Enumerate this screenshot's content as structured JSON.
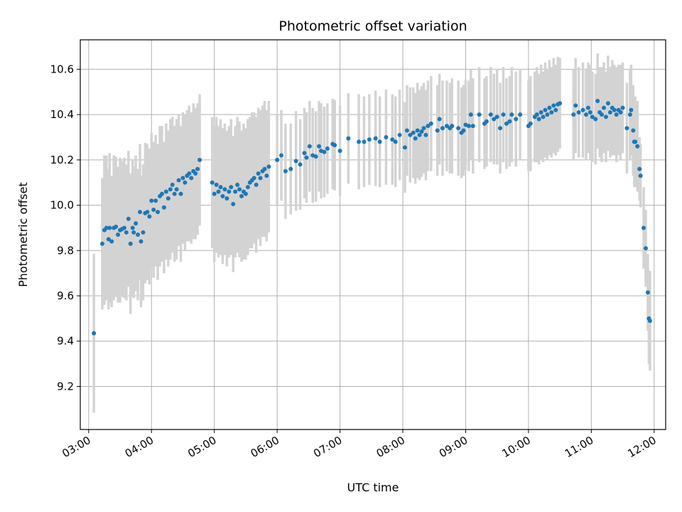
{
  "chart_data": {
    "type": "scatter",
    "title": "Photometric offset variation",
    "xlabel": "UTC time",
    "ylabel": "Photometric offset",
    "x_tick_labels": [
      "03:00",
      "04:00",
      "05:00",
      "06:00",
      "07:00",
      "08:00",
      "09:00",
      "10:00",
      "11:00",
      "12:00"
    ],
    "y_tick_labels": [
      "9.2",
      "9.4",
      "9.6",
      "9.8",
      "10.0",
      "10.2",
      "10.4",
      "10.6"
    ],
    "xlim": [
      "02:52",
      "12:11"
    ],
    "ylim": [
      9.01,
      10.73
    ],
    "grid": true,
    "colors": {
      "point": "#1f77b4",
      "errorbar": "#d3d3d3",
      "grid": "#b0b0b0"
    },
    "points": [
      {
        "t": "03:05",
        "y": 9.435,
        "e": 0.35
      },
      {
        "t": "03:13",
        "y": 9.83,
        "e": 0.29
      },
      {
        "t": "03:15",
        "y": 9.89,
        "e": 0.33
      },
      {
        "t": "03:17",
        "y": 9.9,
        "e": 0.32
      },
      {
        "t": "03:19",
        "y": 9.85,
        "e": 0.31
      },
      {
        "t": "03:20",
        "y": 9.9,
        "e": 0.33
      },
      {
        "t": "03:22",
        "y": 9.84,
        "e": 0.29
      },
      {
        "t": "03:24",
        "y": 9.9,
        "e": 0.32
      },
      {
        "t": "03:26",
        "y": 9.905,
        "e": 0.31
      },
      {
        "t": "03:28",
        "y": 9.87,
        "e": 0.3
      },
      {
        "t": "03:30",
        "y": 9.89,
        "e": 0.32
      },
      {
        "t": "03:32",
        "y": 9.895,
        "e": 0.3
      },
      {
        "t": "03:34",
        "y": 9.9,
        "e": 0.31
      },
      {
        "t": "03:36",
        "y": 9.88,
        "e": 0.3
      },
      {
        "t": "03:38",
        "y": 9.94,
        "e": 0.3
      },
      {
        "t": "03:40",
        "y": 9.83,
        "e": 0.31
      },
      {
        "t": "03:42",
        "y": 9.9,
        "e": 0.3
      },
      {
        "t": "03:43",
        "y": 9.88,
        "e": 0.29
      },
      {
        "t": "03:45",
        "y": 9.92,
        "e": 0.3
      },
      {
        "t": "03:47",
        "y": 9.87,
        "e": 0.29
      },
      {
        "t": "03:49",
        "y": 9.97,
        "e": 0.3
      },
      {
        "t": "03:50",
        "y": 9.84,
        "e": 0.29
      },
      {
        "t": "03:52",
        "y": 9.88,
        "e": 0.3
      },
      {
        "t": "03:54",
        "y": 9.965,
        "e": 0.31
      },
      {
        "t": "03:56",
        "y": 9.97,
        "e": 0.3
      },
      {
        "t": "03:58",
        "y": 9.95,
        "e": 0.3
      },
      {
        "t": "04:00",
        "y": 10.02,
        "e": 0.3
      },
      {
        "t": "04:02",
        "y": 9.98,
        "e": 0.3
      },
      {
        "t": "04:04",
        "y": 10.02,
        "e": 0.29
      },
      {
        "t": "04:06",
        "y": 9.97,
        "e": 0.3
      },
      {
        "t": "04:08",
        "y": 10.04,
        "e": 0.31
      },
      {
        "t": "04:10",
        "y": 10.05,
        "e": 0.3
      },
      {
        "t": "04:12",
        "y": 9.99,
        "e": 0.29
      },
      {
        "t": "04:14",
        "y": 10.06,
        "e": 0.3
      },
      {
        "t": "04:16",
        "y": 10.03,
        "e": 0.3
      },
      {
        "t": "04:18",
        "y": 10.07,
        "e": 0.31
      },
      {
        "t": "04:20",
        "y": 10.09,
        "e": 0.3
      },
      {
        "t": "04:22",
        "y": 10.05,
        "e": 0.3
      },
      {
        "t": "04:24",
        "y": 10.07,
        "e": 0.31
      },
      {
        "t": "04:26",
        "y": 10.11,
        "e": 0.29
      },
      {
        "t": "04:28",
        "y": 10.05,
        "e": 0.3
      },
      {
        "t": "04:30",
        "y": 10.12,
        "e": 0.29
      },
      {
        "t": "04:32",
        "y": 10.1,
        "e": 0.3
      },
      {
        "t": "04:34",
        "y": 10.13,
        "e": 0.29
      },
      {
        "t": "04:36",
        "y": 10.14,
        "e": 0.3
      },
      {
        "t": "04:38",
        "y": 10.12,
        "e": 0.29
      },
      {
        "t": "04:40",
        "y": 10.15,
        "e": 0.3
      },
      {
        "t": "04:42",
        "y": 10.14,
        "e": 0.29
      },
      {
        "t": "04:44",
        "y": 10.16,
        "e": 0.29
      },
      {
        "t": "04:46",
        "y": 10.2,
        "e": 0.29
      },
      {
        "t": "04:58",
        "y": 10.1,
        "e": 0.29
      },
      {
        "t": "05:00",
        "y": 10.05,
        "e": 0.3
      },
      {
        "t": "05:02",
        "y": 10.09,
        "e": 0.3
      },
      {
        "t": "05:04",
        "y": 10.06,
        "e": 0.29
      },
      {
        "t": "05:06",
        "y": 10.08,
        "e": 0.3
      },
      {
        "t": "05:08",
        "y": 10.04,
        "e": 0.3
      },
      {
        "t": "05:10",
        "y": 10.07,
        "e": 0.29
      },
      {
        "t": "05:12",
        "y": 10.03,
        "e": 0.3
      },
      {
        "t": "05:14",
        "y": 10.06,
        "e": 0.29
      },
      {
        "t": "05:16",
        "y": 10.08,
        "e": 0.3
      },
      {
        "t": "05:18",
        "y": 10.005,
        "e": 0.3
      },
      {
        "t": "05:20",
        "y": 10.06,
        "e": 0.29
      },
      {
        "t": "05:22",
        "y": 10.09,
        "e": 0.3
      },
      {
        "t": "05:24",
        "y": 10.07,
        "e": 0.3
      },
      {
        "t": "05:26",
        "y": 10.04,
        "e": 0.29
      },
      {
        "t": "05:28",
        "y": 10.06,
        "e": 0.3
      },
      {
        "t": "05:30",
        "y": 10.05,
        "e": 0.29
      },
      {
        "t": "05:32",
        "y": 10.08,
        "e": 0.3
      },
      {
        "t": "05:34",
        "y": 10.1,
        "e": 0.29
      },
      {
        "t": "05:36",
        "y": 10.11,
        "e": 0.3
      },
      {
        "t": "05:38",
        "y": 10.12,
        "e": 0.29
      },
      {
        "t": "05:40",
        "y": 10.09,
        "e": 0.3
      },
      {
        "t": "05:42",
        "y": 10.14,
        "e": 0.29
      },
      {
        "t": "05:44",
        "y": 10.12,
        "e": 0.3
      },
      {
        "t": "05:46",
        "y": 10.15,
        "e": 0.29
      },
      {
        "t": "05:48",
        "y": 10.16,
        "e": 0.3
      },
      {
        "t": "05:50",
        "y": 10.13,
        "e": 0.29
      },
      {
        "t": "05:52",
        "y": 10.17,
        "e": 0.29
      },
      {
        "t": "06:00",
        "y": 10.2,
        "e": 0.2
      },
      {
        "t": "06:04",
        "y": 10.22,
        "e": 0.2
      },
      {
        "t": "06:08",
        "y": 10.15,
        "e": 0.21
      },
      {
        "t": "06:13",
        "y": 10.16,
        "e": 0.2
      },
      {
        "t": "06:18",
        "y": 10.195,
        "e": 0.22
      },
      {
        "t": "06:22",
        "y": 10.18,
        "e": 0.2
      },
      {
        "t": "06:26",
        "y": 10.23,
        "e": 0.2
      },
      {
        "t": "06:28",
        "y": 10.21,
        "e": 0.2
      },
      {
        "t": "06:31",
        "y": 10.26,
        "e": 0.2
      },
      {
        "t": "06:34",
        "y": 10.22,
        "e": 0.21
      },
      {
        "t": "06:37",
        "y": 10.215,
        "e": 0.2
      },
      {
        "t": "06:40",
        "y": 10.26,
        "e": 0.2
      },
      {
        "t": "06:42",
        "y": 10.24,
        "e": 0.21
      },
      {
        "t": "06:45",
        "y": 10.235,
        "e": 0.2
      },
      {
        "t": "06:48",
        "y": 10.25,
        "e": 0.2
      },
      {
        "t": "06:53",
        "y": 10.27,
        "e": 0.2
      },
      {
        "t": "06:55",
        "y": 10.265,
        "e": 0.2
      },
      {
        "t": "07:00",
        "y": 10.24,
        "e": 0.2
      },
      {
        "t": "07:08",
        "y": 10.295,
        "e": 0.2
      },
      {
        "t": "07:18",
        "y": 10.28,
        "e": 0.21
      },
      {
        "t": "07:23",
        "y": 10.28,
        "e": 0.2
      },
      {
        "t": "07:28",
        "y": 10.29,
        "e": 0.2
      },
      {
        "t": "07:34",
        "y": 10.295,
        "e": 0.21
      },
      {
        "t": "07:38",
        "y": 10.28,
        "e": 0.2
      },
      {
        "t": "07:44",
        "y": 10.3,
        "e": 0.21
      },
      {
        "t": "07:50",
        "y": 10.29,
        "e": 0.2
      },
      {
        "t": "07:53",
        "y": 10.28,
        "e": 0.2
      },
      {
        "t": "07:57",
        "y": 10.31,
        "e": 0.2
      },
      {
        "t": "08:02",
        "y": 10.255,
        "e": 0.2
      },
      {
        "t": "08:04",
        "y": 10.33,
        "e": 0.2
      },
      {
        "t": "08:07",
        "y": 10.31,
        "e": 0.21
      },
      {
        "t": "08:10",
        "y": 10.32,
        "e": 0.2
      },
      {
        "t": "08:12",
        "y": 10.295,
        "e": 0.2
      },
      {
        "t": "08:14",
        "y": 10.33,
        "e": 0.21
      },
      {
        "t": "08:16",
        "y": 10.31,
        "e": 0.2
      },
      {
        "t": "08:18",
        "y": 10.325,
        "e": 0.2
      },
      {
        "t": "08:20",
        "y": 10.34,
        "e": 0.2
      },
      {
        "t": "08:22",
        "y": 10.31,
        "e": 0.2
      },
      {
        "t": "08:24",
        "y": 10.35,
        "e": 0.2
      },
      {
        "t": "08:27",
        "y": 10.36,
        "e": 0.21
      },
      {
        "t": "08:33",
        "y": 10.33,
        "e": 0.2
      },
      {
        "t": "08:35",
        "y": 10.38,
        "e": 0.2
      },
      {
        "t": "08:38",
        "y": 10.34,
        "e": 0.21
      },
      {
        "t": "08:42",
        "y": 10.35,
        "e": 0.2
      },
      {
        "t": "08:45",
        "y": 10.34,
        "e": 0.2
      },
      {
        "t": "08:47",
        "y": 10.35,
        "e": 0.21
      },
      {
        "t": "08:53",
        "y": 10.34,
        "e": 0.21
      },
      {
        "t": "08:56",
        "y": 10.32,
        "e": 0.2
      },
      {
        "t": "08:58",
        "y": 10.33,
        "e": 0.2
      },
      {
        "t": "09:00",
        "y": 10.355,
        "e": 0.2
      },
      {
        "t": "09:03",
        "y": 10.35,
        "e": 0.2
      },
      {
        "t": "09:05",
        "y": 10.4,
        "e": 0.2
      },
      {
        "t": "09:07",
        "y": 10.35,
        "e": 0.21
      },
      {
        "t": "09:13",
        "y": 10.4,
        "e": 0.21
      },
      {
        "t": "09:18",
        "y": 10.36,
        "e": 0.2
      },
      {
        "t": "09:20",
        "y": 10.37,
        "e": 0.2
      },
      {
        "t": "09:24",
        "y": 10.4,
        "e": 0.21
      },
      {
        "t": "09:27",
        "y": 10.38,
        "e": 0.2
      },
      {
        "t": "09:30",
        "y": 10.39,
        "e": 0.21
      },
      {
        "t": "09:33",
        "y": 10.34,
        "e": 0.2
      },
      {
        "t": "09:36",
        "y": 10.4,
        "e": 0.21
      },
      {
        "t": "09:39",
        "y": 10.36,
        "e": 0.2
      },
      {
        "t": "09:42",
        "y": 10.37,
        "e": 0.2
      },
      {
        "t": "09:44",
        "y": 10.4,
        "e": 0.21
      },
      {
        "t": "09:48",
        "y": 10.38,
        "e": 0.21
      },
      {
        "t": "09:52",
        "y": 10.4,
        "e": 0.2
      },
      {
        "t": "10:00",
        "y": 10.35,
        "e": 0.2
      },
      {
        "t": "10:02",
        "y": 10.36,
        "e": 0.21
      },
      {
        "t": "10:06",
        "y": 10.39,
        "e": 0.2
      },
      {
        "t": "10:08",
        "y": 10.4,
        "e": 0.21
      },
      {
        "t": "10:10",
        "y": 10.38,
        "e": 0.2
      },
      {
        "t": "10:12",
        "y": 10.41,
        "e": 0.21
      },
      {
        "t": "10:14",
        "y": 10.39,
        "e": 0.2
      },
      {
        "t": "10:16",
        "y": 10.42,
        "e": 0.21
      },
      {
        "t": "10:18",
        "y": 10.4,
        "e": 0.2
      },
      {
        "t": "10:20",
        "y": 10.43,
        "e": 0.21
      },
      {
        "t": "10:22",
        "y": 10.41,
        "e": 0.2
      },
      {
        "t": "10:24",
        "y": 10.44,
        "e": 0.21
      },
      {
        "t": "10:26",
        "y": 10.42,
        "e": 0.2
      },
      {
        "t": "10:28",
        "y": 10.445,
        "e": 0.21
      },
      {
        "t": "10:30",
        "y": 10.45,
        "e": 0.2
      },
      {
        "t": "10:43",
        "y": 10.4,
        "e": 0.2
      },
      {
        "t": "10:45",
        "y": 10.44,
        "e": 0.21
      },
      {
        "t": "10:48",
        "y": 10.41,
        "e": 0.2
      },
      {
        "t": "10:52",
        "y": 10.42,
        "e": 0.21
      },
      {
        "t": "10:55",
        "y": 10.4,
        "e": 0.2
      },
      {
        "t": "10:57",
        "y": 10.43,
        "e": 0.2
      },
      {
        "t": "10:59",
        "y": 10.41,
        "e": 0.21
      },
      {
        "t": "11:01",
        "y": 10.39,
        "e": 0.2
      },
      {
        "t": "11:04",
        "y": 10.38,
        "e": 0.2
      },
      {
        "t": "11:06",
        "y": 10.46,
        "e": 0.21
      },
      {
        "t": "11:08",
        "y": 10.41,
        "e": 0.2
      },
      {
        "t": "11:10",
        "y": 10.4,
        "e": 0.21
      },
      {
        "t": "11:12",
        "y": 10.43,
        "e": 0.2
      },
      {
        "t": "11:14",
        "y": 10.39,
        "e": 0.2
      },
      {
        "t": "11:16",
        "y": 10.45,
        "e": 0.21
      },
      {
        "t": "11:18",
        "y": 10.41,
        "e": 0.2
      },
      {
        "t": "11:20",
        "y": 10.43,
        "e": 0.21
      },
      {
        "t": "11:22",
        "y": 10.42,
        "e": 0.2
      },
      {
        "t": "11:24",
        "y": 10.4,
        "e": 0.21
      },
      {
        "t": "11:26",
        "y": 10.42,
        "e": 0.2
      },
      {
        "t": "11:28",
        "y": 10.41,
        "e": 0.21
      },
      {
        "t": "11:30",
        "y": 10.43,
        "e": 0.2
      },
      {
        "t": "11:34",
        "y": 10.34,
        "e": 0.2
      },
      {
        "t": "11:37",
        "y": 10.4,
        "e": 0.2
      },
      {
        "t": "11:38",
        "y": 10.42,
        "e": 0.2
      },
      {
        "t": "11:40",
        "y": 10.33,
        "e": 0.2
      },
      {
        "t": "11:41",
        "y": 10.28,
        "e": 0.2
      },
      {
        "t": "11:42",
        "y": 10.28,
        "e": 0.2
      },
      {
        "t": "11:44",
        "y": 10.26,
        "e": 0.2
      },
      {
        "t": "11:46",
        "y": 10.16,
        "e": 0.14
      },
      {
        "t": "11:47",
        "y": 10.13,
        "e": 0.14
      },
      {
        "t": "11:50",
        "y": 9.9,
        "e": 0.18
      },
      {
        "t": "11:52",
        "y": 9.81,
        "e": 0.17
      },
      {
        "t": "11:54",
        "y": 9.615,
        "e": 0.17
      },
      {
        "t": "11:55",
        "y": 9.5,
        "e": 0.2
      },
      {
        "t": "11:56",
        "y": 9.49,
        "e": 0.22
      }
    ]
  }
}
